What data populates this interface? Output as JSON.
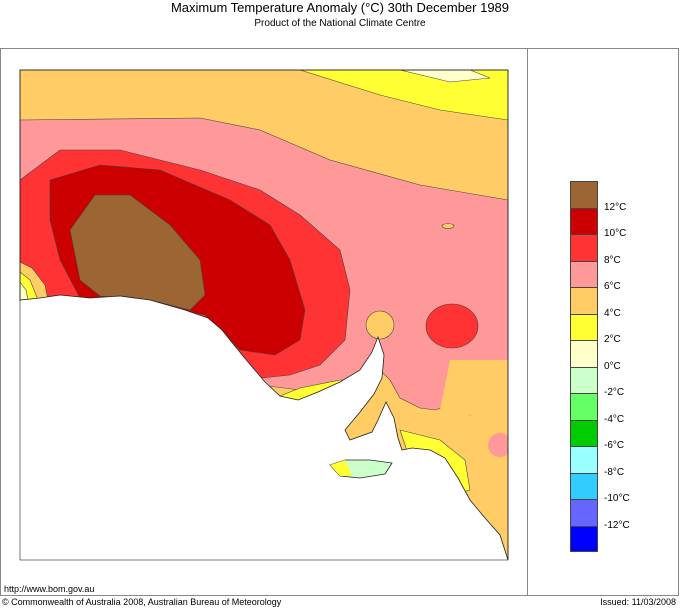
{
  "title": "Maximum Temperature Anomaly (°C)  30th December 1989",
  "subtitle": "Product of the National Climate Centre",
  "legend": {
    "colors": [
      "#9b6633",
      "#cc0000",
      "#ff3333",
      "#ff9999",
      "#ffcc66",
      "#ffff33",
      "#ffffcc",
      "#ccffcc",
      "#66ff66",
      "#00cc00",
      "#99ffff",
      "#33ccff",
      "#6666ff",
      "#0000ff"
    ],
    "labels": [
      "12°C",
      "10°C",
      "8°C",
      "6°C",
      "4°C",
      "2°C",
      "0°C",
      "-2°C",
      "-4°C",
      "-6°C",
      "-8°C",
      "-10°C",
      "-12°C"
    ]
  },
  "footer": {
    "url": "http://www.bom.gov.au",
    "copyright": "© Commonwealth of Australia 2008, Australian Bureau of Meteorology",
    "issued": "Issued: 11/03/2008"
  }
}
